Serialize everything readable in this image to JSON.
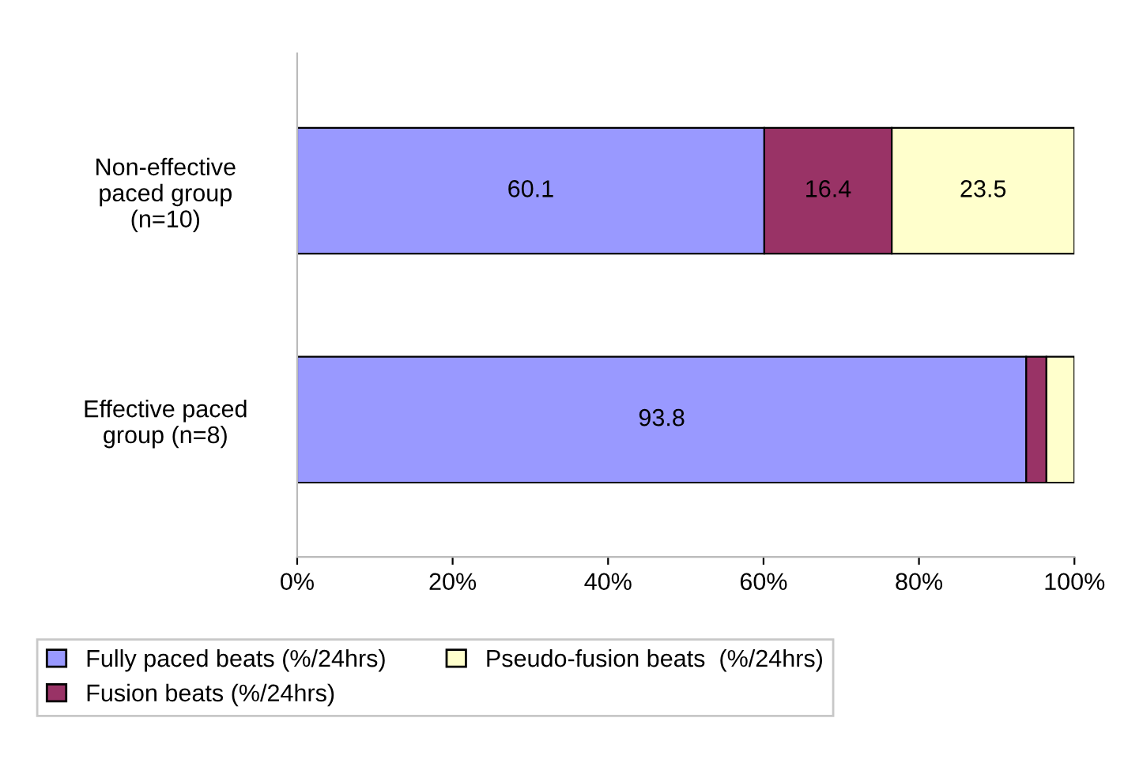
{
  "chart_data": {
    "type": "bar",
    "orientation": "horizontal",
    "stacked": true,
    "categories": [
      "Non-effective\npaced group\n(n=10)",
      "Effective paced\ngroup (n=8)"
    ],
    "series": [
      {
        "name": "Fully paced beats (%/24hrs)",
        "color": "#9999ff",
        "values": [
          60.1,
          93.8
        ],
        "value_labels": [
          "60.1",
          "93.8"
        ]
      },
      {
        "name": "Fusion beats (%/24hrs)",
        "color": "#993366",
        "values": [
          16.4,
          2.6
        ],
        "value_labels": [
          "16.4",
          null
        ]
      },
      {
        "name": "Pseudo-fusion beats  (%/24hrs)",
        "color": "#ffffcc",
        "values": [
          23.5,
          3.6
        ],
        "value_labels": [
          "23.5",
          null
        ]
      }
    ],
    "xlim": [
      0,
      100
    ],
    "xticks": [
      {
        "value": 0,
        "label": "0%"
      },
      {
        "value": 20,
        "label": "20%"
      },
      {
        "value": 40,
        "label": "40%"
      },
      {
        "value": 60,
        "label": "60%"
      },
      {
        "value": 80,
        "label": "80%"
      },
      {
        "value": 100,
        "label": "100%"
      }
    ],
    "grid": false,
    "legend": "bottom"
  }
}
